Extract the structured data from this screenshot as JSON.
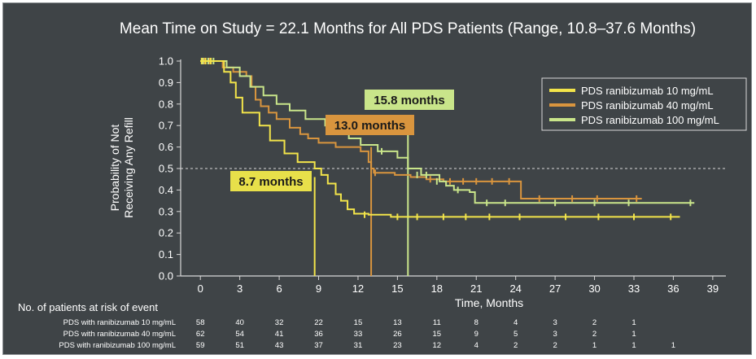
{
  "colors": {
    "background": "#3f4447",
    "text": "#ffffff",
    "axis": "#d8d8d8",
    "s10": "#f2e44a",
    "s40": "#d9953e",
    "s100": "#c9e58a",
    "label10_bg": "#e8e04a",
    "label40_bg": "#d9953e",
    "label100_bg": "#c9e58a",
    "label_text": "#1a1a1a"
  },
  "chart_data": {
    "type": "line",
    "title": "Mean Time on Study = 22.1 Months for All PDS Patients (Range, 10.8–37.6 Months)",
    "xlabel": "Time, Months",
    "ylabel_lines": [
      "Probability of Not",
      "Receiving Any Refill"
    ],
    "xlim": [
      -1.5,
      40
    ],
    "ylim": [
      0,
      1.0
    ],
    "xticks": [
      0,
      3,
      6,
      9,
      12,
      15,
      18,
      21,
      24,
      27,
      30,
      33,
      36,
      39
    ],
    "yticks": [
      "0.0",
      "0.1",
      "0.2",
      "0.3",
      "0.4",
      "0.5",
      "0.6",
      "0.7",
      "0.8",
      "0.9",
      "1.0"
    ],
    "reference_line_y": 0.5,
    "legend": [
      {
        "key": "s10",
        "label": "PDS ranibizumab 10 mg/mL"
      },
      {
        "key": "s40",
        "label": "PDS ranibizumab 40 mg/mL"
      },
      {
        "key": "s100",
        "label": "PDS ranibizumab 100 mg/mL"
      }
    ],
    "series": [
      {
        "key": "s10",
        "name": "PDS ranibizumab 10 mg/mL",
        "points": [
          [
            0,
            1.0
          ],
          [
            1.2,
            1.0
          ],
          [
            1.8,
            0.95
          ],
          [
            2.3,
            0.9
          ],
          [
            2.7,
            0.83
          ],
          [
            3.2,
            0.76
          ],
          [
            4.5,
            0.7
          ],
          [
            5.3,
            0.63
          ],
          [
            6.4,
            0.57
          ],
          [
            7.4,
            0.53
          ],
          [
            8.7,
            0.5
          ],
          [
            9.2,
            0.47
          ],
          [
            9.7,
            0.43
          ],
          [
            10.3,
            0.38
          ],
          [
            10.7,
            0.35
          ],
          [
            11.2,
            0.31
          ],
          [
            11.7,
            0.29
          ],
          [
            12.8,
            0.285
          ],
          [
            14.5,
            0.275
          ],
          [
            36.5,
            0.275
          ]
        ],
        "censors": [
          [
            0.1,
            1.0
          ],
          [
            0.4,
            1.0
          ],
          [
            0.8,
            1.0
          ],
          [
            12.5,
            0.285
          ],
          [
            15.0,
            0.275
          ],
          [
            16.5,
            0.275
          ],
          [
            18.5,
            0.275
          ],
          [
            20.2,
            0.275
          ],
          [
            22.0,
            0.275
          ],
          [
            24.3,
            0.275
          ],
          [
            27.8,
            0.275
          ],
          [
            30.3,
            0.275
          ],
          [
            33.0,
            0.275
          ],
          [
            35.8,
            0.275
          ]
        ],
        "median": 8.7,
        "median_label": "8.7 months"
      },
      {
        "key": "s40",
        "name": "PDS ranibizumab 40 mg/mL",
        "points": [
          [
            0,
            1.0
          ],
          [
            1.0,
            1.0
          ],
          [
            1.7,
            0.97
          ],
          [
            2.5,
            0.95
          ],
          [
            3.5,
            0.93
          ],
          [
            3.9,
            0.88
          ],
          [
            4.2,
            0.82
          ],
          [
            4.6,
            0.79
          ],
          [
            5.2,
            0.76
          ],
          [
            5.8,
            0.73
          ],
          [
            6.8,
            0.69
          ],
          [
            7.6,
            0.66
          ],
          [
            8.2,
            0.64
          ],
          [
            9.0,
            0.62
          ],
          [
            10.3,
            0.6
          ],
          [
            12.2,
            0.58
          ],
          [
            12.8,
            0.53
          ],
          [
            13.0,
            0.5
          ],
          [
            13.2,
            0.48
          ],
          [
            14.8,
            0.47
          ],
          [
            16.0,
            0.46
          ],
          [
            17.2,
            0.45
          ],
          [
            18.5,
            0.44
          ],
          [
            24.3,
            0.44
          ],
          [
            24.4,
            0.36
          ],
          [
            33.6,
            0.36
          ]
        ],
        "censors": [
          [
            0.3,
            1.0
          ],
          [
            0.7,
            1.0
          ],
          [
            13.3,
            0.48
          ],
          [
            17.5,
            0.45
          ],
          [
            19.0,
            0.44
          ],
          [
            20.0,
            0.44
          ],
          [
            21.0,
            0.44
          ],
          [
            22.2,
            0.44
          ],
          [
            23.5,
            0.44
          ],
          [
            25.8,
            0.36
          ],
          [
            28.3,
            0.36
          ],
          [
            30.2,
            0.36
          ],
          [
            33.2,
            0.36
          ]
        ],
        "median": 13.0,
        "median_label": "13.0 months"
      },
      {
        "key": "s100",
        "name": "PDS ranibizumab 100 mg/mL",
        "points": [
          [
            0,
            1.0
          ],
          [
            1.5,
            1.0
          ],
          [
            2.0,
            0.97
          ],
          [
            3.0,
            0.93
          ],
          [
            3.8,
            0.88
          ],
          [
            4.8,
            0.84
          ],
          [
            5.8,
            0.8
          ],
          [
            6.8,
            0.77
          ],
          [
            8.0,
            0.73
          ],
          [
            9.5,
            0.7
          ],
          [
            10.5,
            0.67
          ],
          [
            11.3,
            0.64
          ],
          [
            12.2,
            0.61
          ],
          [
            13.5,
            0.58
          ],
          [
            15.0,
            0.55
          ],
          [
            15.8,
            0.5
          ],
          [
            16.8,
            0.47
          ],
          [
            18.2,
            0.44
          ],
          [
            18.7,
            0.42
          ],
          [
            19.3,
            0.4
          ],
          [
            20.5,
            0.39
          ],
          [
            20.9,
            0.34
          ],
          [
            37.6,
            0.34
          ]
        ],
        "censors": [
          [
            0.2,
            1.0
          ],
          [
            0.6,
            1.0
          ],
          [
            1.0,
            1.0
          ],
          [
            13.8,
            0.58
          ],
          [
            16.5,
            0.47
          ],
          [
            17.2,
            0.47
          ],
          [
            18.0,
            0.44
          ],
          [
            19.6,
            0.4
          ],
          [
            21.8,
            0.34
          ],
          [
            23.2,
            0.34
          ],
          [
            27.0,
            0.34
          ],
          [
            30.0,
            0.34
          ],
          [
            32.6,
            0.34
          ],
          [
            37.3,
            0.34
          ]
        ],
        "median": 15.8,
        "median_label": "15.8 months"
      }
    ],
    "risk_table": {
      "title": "No. of patients at risk of event",
      "rows": [
        {
          "label": "PDS with ranibizumab 10 mg/mL",
          "values": [
            "58",
            "40",
            "32",
            "22",
            "15",
            "13",
            "11",
            "8",
            "4",
            "3",
            "2",
            "1",
            "",
            ""
          ]
        },
        {
          "label": "PDS with ranibizumab 40 mg/mL",
          "values": [
            "62",
            "54",
            "41",
            "36",
            "33",
            "26",
            "15",
            "9",
            "5",
            "3",
            "2",
            "1",
            "",
            ""
          ]
        },
        {
          "label": "PDS with ranibizumab 100 mg/mL",
          "values": [
            "59",
            "51",
            "43",
            "37",
            "31",
            "23",
            "12",
            "4",
            "2",
            "2",
            "1",
            "1",
            "1",
            ""
          ]
        }
      ]
    }
  }
}
